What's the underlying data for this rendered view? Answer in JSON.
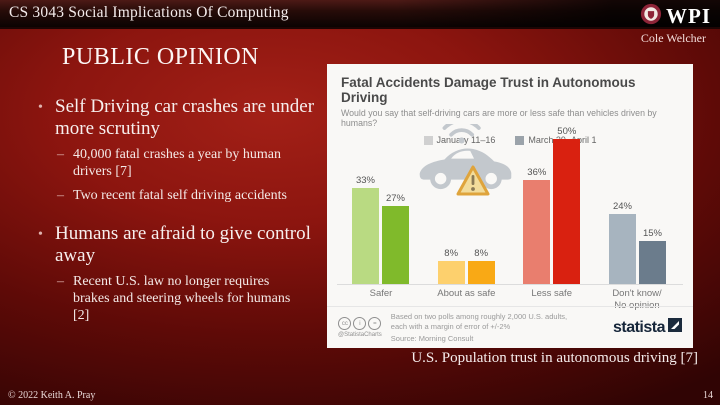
{
  "header": {
    "course": "CS 3043 Social Implications Of Computing",
    "logo": "WPI",
    "author": "Cole Welcher"
  },
  "slide": {
    "title": "PUBLIC OPINION",
    "bullet_marker": "•",
    "sub_marker": "–",
    "bullets": [
      {
        "text": "Self Driving car crashes are under more scrutiny",
        "subs": [
          "40,000 fatal crashes a year by human drivers [7]",
          "Two recent fatal self driving accidents"
        ]
      },
      {
        "text": "Humans are afraid to give control away",
        "subs": [
          "Recent U.S. law no longer requires brakes and steering wheels for humans [2]"
        ]
      }
    ],
    "chart_caption": "U.S. Population trust in autonomous driving [7]"
  },
  "chart": {
    "footnote": "Based on two polls among roughly 2,000 U.S. adults,\neach with a margin of error of +/-2%",
    "source": "Source: Morning Consult",
    "credit": "@StatistaCharts",
    "brand": "statista",
    "license_icon_glyphs": [
      "cc",
      "i",
      "="
    ]
  },
  "chart_data": {
    "type": "bar",
    "title": "Fatal Accidents Damage Trust in Autonomous Driving",
    "subtitle": "Would you say that self-driving cars are more or less safe than vehicles driven by humans?",
    "categories": [
      "Safer",
      "About as safe",
      "Less safe",
      "Don't know/\nNo opinion"
    ],
    "series": [
      {
        "name": "January 11–16",
        "legend_color": "#d0d0d0",
        "values": [
          33,
          8,
          36,
          24
        ],
        "bar_colors": [
          "#b9da82",
          "#fdd06d",
          "#e97e6e",
          "#a7b4bf"
        ]
      },
      {
        "name": "March 29–April 1",
        "legend_color": "#9ba3aa",
        "values": [
          27,
          8,
          50,
          15
        ],
        "bar_colors": [
          "#80ba2b",
          "#f9a915",
          "#d92110",
          "#6b7c8c"
        ]
      }
    ],
    "unit": "%",
    "ylim": [
      0,
      55
    ],
    "grid": false,
    "legend_position": "top",
    "value_labels": true
  },
  "footer": {
    "copyright": "© 2022 Keith A. Pray",
    "page": "14"
  },
  "colors": {
    "slide_bg_center": "#a32017",
    "slide_bg_edge": "#300404",
    "header_bar": "#270c09",
    "card_bg": "#f9f8f6",
    "statista_navy": "#16263a",
    "wpi_crimson": "#8e2438",
    "warning_fill": "#f2dc9b",
    "warning_border": "#dfa43c",
    "car_gray": "#c3c8cd"
  },
  "icons": [
    "wpi-seal-icon",
    "wifi-icon",
    "car-icon",
    "warning-triangle-icon",
    "cc-icon",
    "attribution-icon",
    "no-derivatives-icon",
    "statista-mark-icon"
  ]
}
